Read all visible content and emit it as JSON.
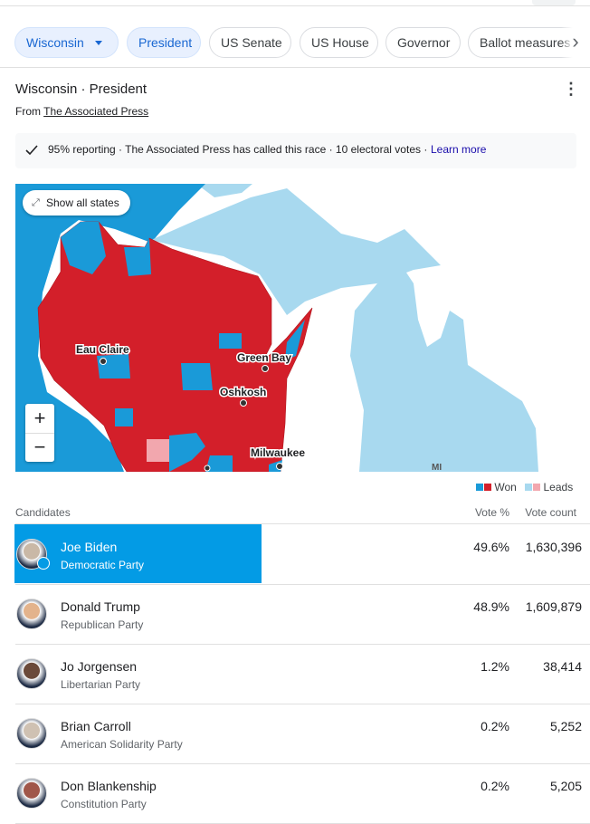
{
  "tabs": [
    "Wisconsin",
    "President",
    "US Senate",
    "US House",
    "Governor",
    "Ballot measures"
  ],
  "header": {
    "title": "Wisconsin · President",
    "source_prefix": "From",
    "source": "The Associated Press"
  },
  "status": {
    "text": "95% reporting · The Associated Press has called this race · 10 electoral votes ·",
    "link": "Learn more"
  },
  "map": {
    "button": "Show all states",
    "labels": [
      "Eau Claire",
      "Green Bay",
      "Oshkosh",
      "Milwaukee",
      "MI"
    ],
    "zoom_in": "+",
    "zoom_out": "−"
  },
  "legend": {
    "won": "Won",
    "leads": "Leads"
  },
  "table": {
    "headers": [
      "Candidates",
      "Vote %",
      "Vote count"
    ],
    "rows": [
      {
        "name": "Joe Biden",
        "party": "Democratic Party",
        "pct": "49.6%",
        "count": "1,630,396"
      },
      {
        "name": "Donald Trump",
        "party": "Republican Party",
        "pct": "48.9%",
        "count": "1,609,879"
      },
      {
        "name": "Jo Jorgensen",
        "party": "Libertarian Party",
        "pct": "1.2%",
        "count": "38,414"
      },
      {
        "name": "Brian Carroll",
        "party": "American Solidarity Party",
        "pct": "0.2%",
        "count": "5,252"
      },
      {
        "name": "Don Blankenship",
        "party": "Constitution Party",
        "pct": "0.2%",
        "count": "5,205"
      }
    ]
  }
}
